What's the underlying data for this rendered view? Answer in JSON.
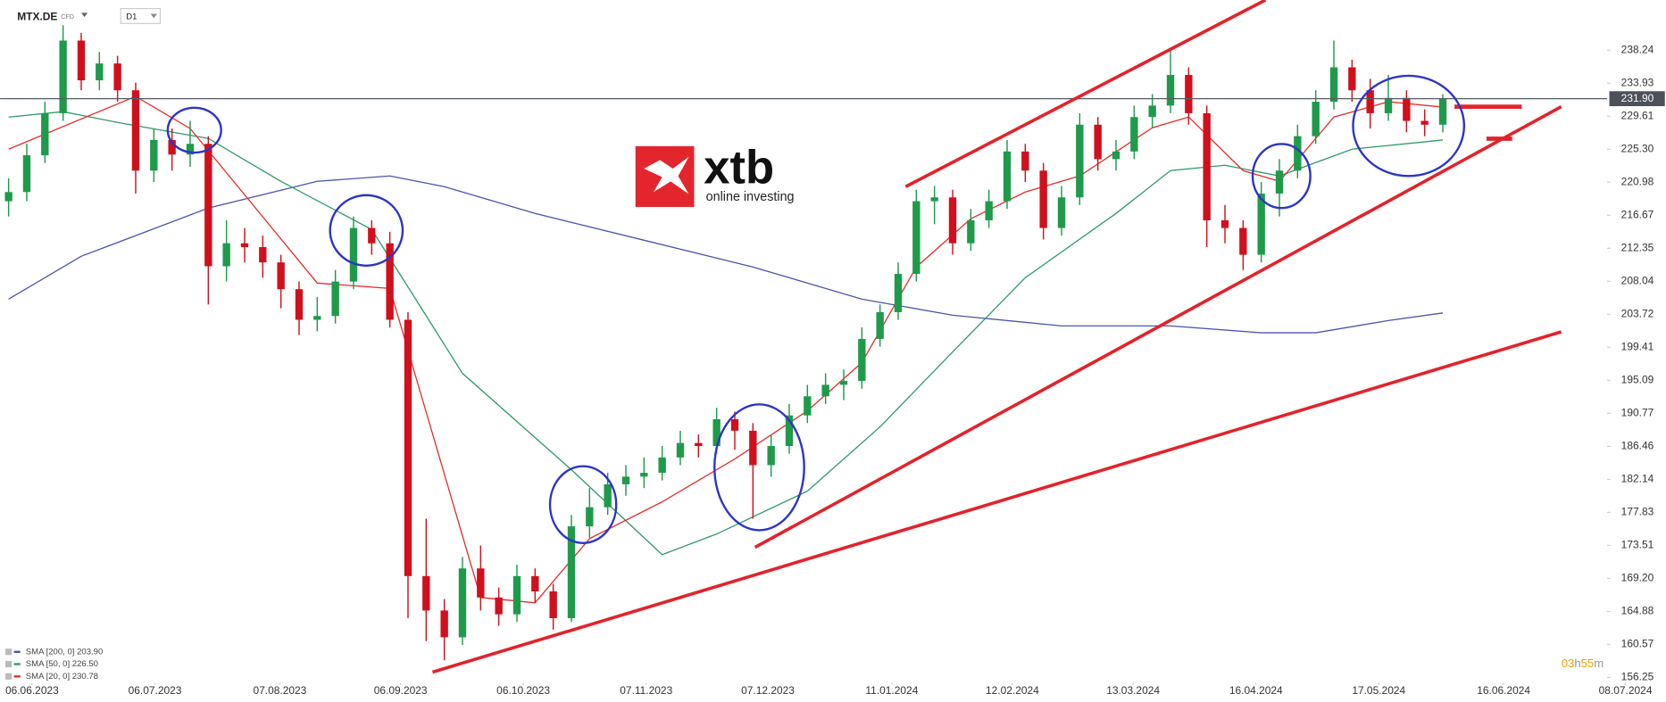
{
  "chart_data": {
    "type": "candlestick",
    "symbol": "MTX.DE",
    "instrument_type": "CFD",
    "interval": "D1",
    "watermark": "xtb",
    "watermark_tagline": "online investing",
    "countdown": [
      "03",
      "h",
      "55",
      "m"
    ],
    "up_color": "#1f9a4b",
    "down_color": "#d0101c",
    "open": [
      218.5,
      219.7,
      224.5,
      230,
      239.5,
      234.3,
      236.5,
      233,
      222.5,
      226.5,
      224.6,
      226,
      210,
      213,
      212.5,
      210.5,
      207,
      203,
      203.5,
      208,
      215,
      213,
      203,
      169.5,
      165,
      161.5,
      170.5,
      166.7,
      164.5,
      169.5,
      167.5,
      164,
      176,
      178.5,
      181.5,
      182.5,
      183,
      185,
      186.9,
      186.5,
      190,
      188.5,
      184,
      186.5,
      190.5,
      193,
      194.5,
      195,
      200.5,
      204,
      209,
      218.5,
      219,
      213,
      216,
      218.5,
      225,
      222.5,
      215,
      219,
      228.5,
      224,
      225,
      229.5,
      231,
      235,
      230,
      216,
      215,
      211.5,
      219.5,
      222.5,
      227,
      231.5,
      236,
      233,
      230,
      232,
      229,
      228.5
    ],
    "high": [
      221.5,
      226,
      231.5,
      241.5,
      240.5,
      238,
      237.5,
      234,
      228,
      228,
      229,
      227,
      216,
      215,
      214,
      211.5,
      208,
      206,
      209.5,
      216.5,
      216,
      214.5,
      204,
      177,
      166.5,
      172,
      173.5,
      168,
      171,
      170.5,
      168.5,
      177.5,
      181,
      183,
      184,
      185,
      186.5,
      188.5,
      188,
      191.5,
      191,
      189.5,
      188,
      192,
      194.5,
      196,
      196.5,
      202,
      205,
      210.5,
      220,
      220.5,
      220,
      217.5,
      220,
      226.5,
      226,
      223.5,
      220.5,
      230,
      229.5,
      226.5,
      231,
      232.5,
      238.5,
      236,
      231,
      218,
      216,
      221,
      224,
      228.5,
      233,
      239.5,
      237,
      234.5,
      235,
      233,
      230.5,
      232.5
    ],
    "low": [
      216.5,
      218.5,
      223.5,
      229,
      233,
      233,
      231.5,
      219.5,
      221,
      222.5,
      223,
      205,
      208,
      210.5,
      208.5,
      204.5,
      201,
      201.5,
      202.5,
      207,
      211.5,
      202,
      164,
      161,
      158.5,
      160.5,
      165,
      163,
      163.5,
      166,
      162.5,
      163.5,
      174.5,
      177.5,
      180,
      181,
      182,
      184,
      185,
      185.5,
      186,
      177,
      182.5,
      185.5,
      189.5,
      192,
      192.5,
      194,
      199.5,
      203,
      208,
      215.5,
      211.5,
      212,
      215,
      217.5,
      221,
      213.5,
      214,
      218,
      222.5,
      222.5,
      224,
      228,
      230,
      228.5,
      212.5,
      213,
      209.5,
      210.5,
      216.5,
      221.5,
      226,
      230.5,
      231.5,
      228,
      229,
      227.5,
      227,
      227.5
    ],
    "close": [
      219.7,
      224.5,
      230,
      239.5,
      234.3,
      236.5,
      233,
      222.5,
      226.5,
      224.6,
      226,
      210,
      213,
      212.5,
      210.5,
      207,
      203,
      203.5,
      208,
      215,
      213,
      203,
      169.5,
      165,
      161.5,
      170.5,
      166.7,
      164.5,
      169.5,
      167.5,
      164,
      176,
      178.5,
      181.5,
      182.5,
      183,
      185,
      186.9,
      186.5,
      190,
      188.5,
      184,
      186.5,
      190.5,
      193,
      194.5,
      195,
      200.5,
      204,
      209,
      218.5,
      219,
      213,
      216,
      218.5,
      225,
      222.5,
      215,
      219,
      228.5,
      224,
      225,
      229.5,
      231,
      235,
      230,
      216,
      215,
      211.5,
      219.5,
      222.5,
      227,
      231.5,
      236,
      233,
      230,
      232,
      229,
      228.5,
      231.9
    ],
    "series": [
      {
        "name": "SMA [200, 0] 203.90",
        "color": "#4b55ad",
        "x": [
          0,
          4,
          11,
          17,
          21,
          24,
          29,
          35,
          41,
          47,
          52,
          58,
          64,
          69,
          72,
          76,
          79
        ],
        "values": [
          205.7,
          211.3,
          217.6,
          221.1,
          221.8,
          220.4,
          216.9,
          213.4,
          209.9,
          205.7,
          203.6,
          202.2,
          202.2,
          201.3,
          201.3,
          202.9,
          203.9
        ]
      },
      {
        "name": "SMA [50, 0] 226.50",
        "color": "#2e9a6a",
        "x": [
          0,
          3,
          6,
          11,
          15,
          20,
          25,
          31,
          36,
          39,
          44,
          48,
          52,
          56,
          61,
          64,
          67,
          70,
          74,
          79
        ],
        "values": [
          229.5,
          230.2,
          228.8,
          226.7,
          221.1,
          214.8,
          196,
          183.4,
          172.3,
          175,
          180.6,
          189,
          198.8,
          208.5,
          216.9,
          222.5,
          223.2,
          221.8,
          225.3,
          226.5
        ]
      },
      {
        "name": "SMA [20, 0] 230.78",
        "color": "#e0302a",
        "x": [
          0,
          7,
          10,
          17,
          21,
          26,
          29,
          32,
          36,
          40,
          44,
          47,
          50,
          53,
          56,
          59,
          63,
          65,
          68,
          70,
          73,
          76,
          79
        ],
        "values": [
          225.3,
          232.2,
          228,
          207.8,
          207.1,
          166.7,
          166,
          174.4,
          179.2,
          184.8,
          191.1,
          197.4,
          209.9,
          216.2,
          219.7,
          221.8,
          228.1,
          229.5,
          222.5,
          221.1,
          229.5,
          231.5,
          230.8
        ]
      }
    ],
    "last_price": {
      "value": 231.9,
      "label": "231.90"
    },
    "ylim": [
      155.55,
      244.8
    ],
    "yticks": [
      238.24,
      233.93,
      229.61,
      {
        "value": 225.3,
        "label": "225.30"
      },
      220.98,
      216.67,
      212.35,
      208.04,
      203.72,
      199.41,
      195.09,
      190.77,
      186.46,
      182.14,
      177.83,
      173.51,
      {
        "value": 169.2,
        "label": "169.20"
      },
      164.88,
      160.57,
      156.25
    ],
    "xlim": [
      -0.47,
      91.29
    ],
    "xticks": [
      {
        "value": 1.29,
        "label": "06.06.2023"
      },
      {
        "value": 8.06,
        "label": "06.07.2023"
      },
      {
        "value": 14.94,
        "label": "07.08.2023"
      },
      {
        "value": 21.59,
        "label": "06.09.2023"
      },
      {
        "value": 28.35,
        "label": "06.10.2023"
      },
      {
        "value": 35.12,
        "label": "07.11.2023"
      },
      {
        "value": 41.82,
        "label": "07.12.2023"
      },
      {
        "value": 48.65,
        "label": "11.01.2024"
      },
      {
        "value": 55.29,
        "label": "12.02.2024"
      },
      {
        "value": 61.94,
        "label": "13.03.2024"
      },
      {
        "value": 68.71,
        "label": "16.04.2024"
      },
      {
        "value": 75.47,
        "label": "17.05.2024"
      },
      {
        "value": 82.35,
        "label": "16.06.2024"
      },
      {
        "value": 89.06,
        "label": "08.07.2024"
      }
    ]
  }
}
